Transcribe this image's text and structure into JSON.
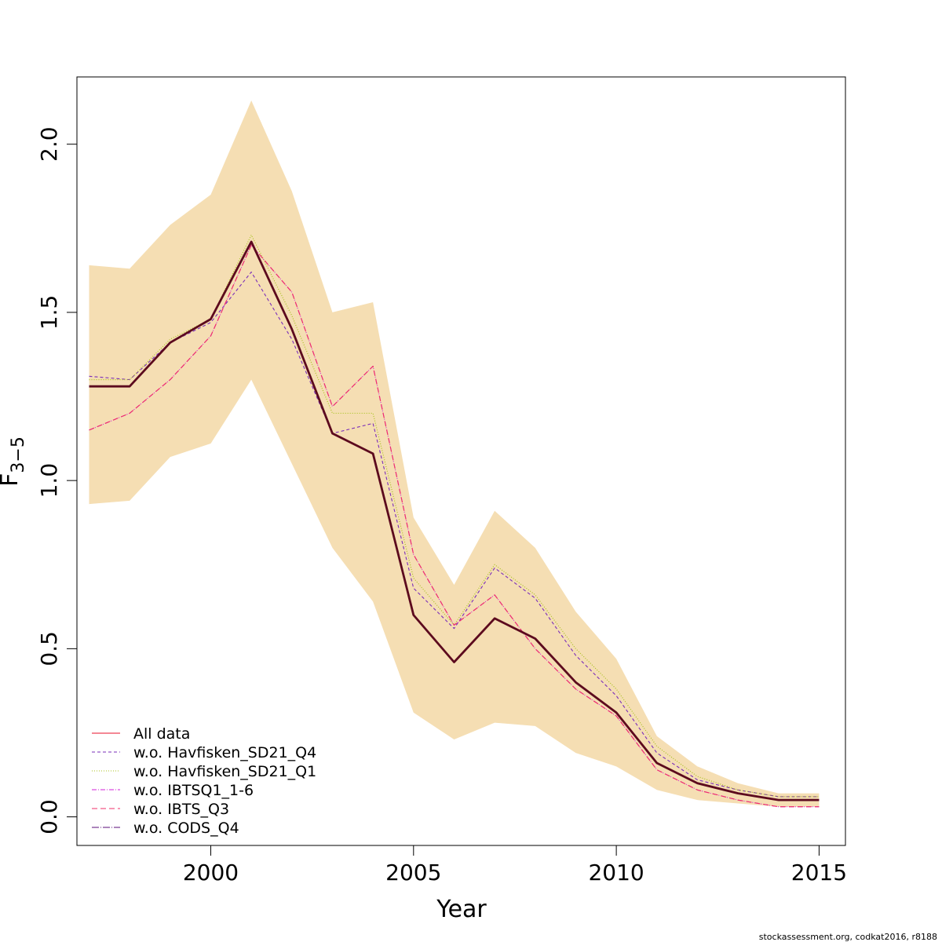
{
  "chart_data": {
    "type": "line",
    "xlabel": "Year",
    "ylabel_main": "F",
    "ylabel_sub": "3−5",
    "xlim": [
      1996.7,
      2015.65
    ],
    "ylim": [
      -0.085,
      2.2
    ],
    "x_ticks": [
      2000,
      2005,
      2010,
      2015
    ],
    "y_ticks": [
      0.0,
      0.5,
      1.0,
      1.5,
      2.0
    ],
    "x_tick_labels": [
      "2000",
      "2005",
      "2010",
      "2015"
    ],
    "y_tick_labels": [
      "0.0",
      "0.5",
      "1.0",
      "1.5",
      "2.0"
    ],
    "x": [
      1997,
      1998,
      1999,
      2000,
      2001,
      2002,
      2003,
      2004,
      2005,
      2006,
      2007,
      2008,
      2009,
      2010,
      2011,
      2012,
      2013,
      2014,
      2015
    ],
    "band": {
      "color": "#F5DEB3",
      "lower": [
        0.93,
        0.94,
        1.07,
        1.11,
        1.3,
        1.05,
        0.8,
        0.64,
        0.31,
        0.23,
        0.28,
        0.27,
        0.19,
        0.15,
        0.08,
        0.05,
        0.04,
        0.03,
        0.03
      ],
      "upper": [
        1.64,
        1.63,
        1.76,
        1.85,
        2.13,
        1.86,
        1.5,
        1.53,
        0.89,
        0.69,
        0.91,
        0.8,
        0.61,
        0.47,
        0.24,
        0.15,
        0.1,
        0.07,
        0.07
      ]
    },
    "series": [
      {
        "name": "All data",
        "color": "#5C0A1E",
        "dash": "",
        "width": 2.8,
        "legend_color": "#E8102A",
        "legend_dash": "",
        "values": [
          1.28,
          1.28,
          1.41,
          1.48,
          1.71,
          1.45,
          1.14,
          1.08,
          0.6,
          0.46,
          0.59,
          0.53,
          0.4,
          0.31,
          0.16,
          0.1,
          0.07,
          0.05,
          0.05
        ]
      },
      {
        "name": "w.o. Havfisken_SD21_Q4",
        "color": "#7A2DB8",
        "dash": "4,3",
        "width": 1.1,
        "values": [
          1.31,
          1.3,
          1.41,
          1.47,
          1.62,
          1.42,
          1.14,
          1.17,
          0.68,
          0.56,
          0.74,
          0.65,
          0.48,
          0.36,
          0.19,
          0.11,
          0.08,
          0.06,
          0.06
        ]
      },
      {
        "name": "w.o. Havfisken_SD21_Q1",
        "color": "#A8C21E",
        "dash": "1,2",
        "width": 1.2,
        "values": [
          1.3,
          1.3,
          1.42,
          1.48,
          1.73,
          1.49,
          1.2,
          1.2,
          0.71,
          0.57,
          0.75,
          0.66,
          0.5,
          0.38,
          0.21,
          0.12,
          0.08,
          0.06,
          0.06
        ]
      },
      {
        "name": "w.o. IBTSQ1_1-6",
        "color": "#D020D8",
        "dash": "6,2,1,2",
        "width": 1.1,
        "values": [
          1.15,
          1.2,
          1.3,
          1.43,
          1.7,
          1.56,
          1.22,
          1.34,
          0.78,
          0.57,
          0.66,
          0.5,
          0.38,
          0.3,
          0.14,
          0.08,
          0.05,
          0.03,
          0.03
        ]
      },
      {
        "name": "w.o. IBTS_Q3",
        "color": "#F0306A",
        "dash": "7,4",
        "width": 1.1,
        "values": [
          1.15,
          1.2,
          1.3,
          1.43,
          1.7,
          1.56,
          1.22,
          1.34,
          0.78,
          0.57,
          0.66,
          0.5,
          0.38,
          0.3,
          0.14,
          0.08,
          0.05,
          0.03,
          0.03
        ]
      },
      {
        "name": "w.o. CODS_Q4",
        "color": "#5A0E7A",
        "dash": "9,2,1,2",
        "width": 1.2,
        "values": [
          1.28,
          1.28,
          1.41,
          1.48,
          1.71,
          1.45,
          1.14,
          1.08,
          0.6,
          0.46,
          0.59,
          0.53,
          0.4,
          0.31,
          0.16,
          0.1,
          0.07,
          0.05,
          0.05
        ]
      }
    ],
    "legend": "bottom-left"
  },
  "footer": "stockassessment.org, codkat2016, r8188"
}
